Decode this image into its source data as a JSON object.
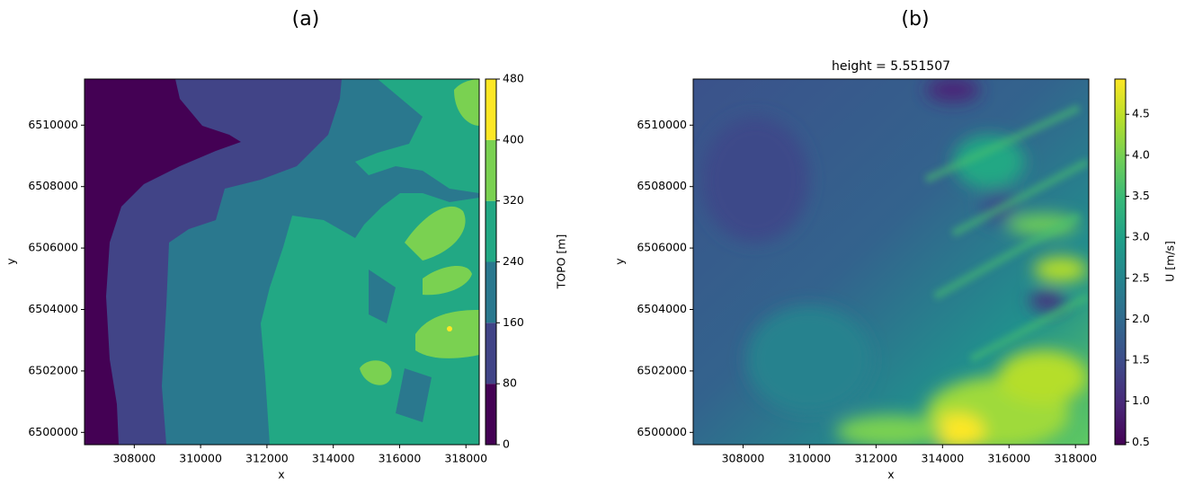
{
  "chart_data": [
    {
      "type": "contour",
      "panel_label": "(a)",
      "xlabel": "x",
      "ylabel": "y",
      "xlim": [
        306500,
        318400
      ],
      "ylim": [
        6499600,
        6511500
      ],
      "xticks": [
        308000,
        310000,
        312000,
        314000,
        316000,
        318000
      ],
      "yticks": [
        6500000,
        6502000,
        6504000,
        6506000,
        6508000,
        6510000
      ],
      "colorbar_label": "TOPO [m]",
      "levels": [
        0,
        80,
        160,
        240,
        320,
        400,
        480
      ],
      "colors": [
        "#440154",
        "#414487",
        "#2a788e",
        "#22a884",
        "#7ad151",
        "#fde725"
      ]
    },
    {
      "type": "heatmap",
      "panel_label": "(b)",
      "title": "height = 5.551507",
      "xlabel": "x",
      "ylabel": "y",
      "xlim": [
        306500,
        318400
      ],
      "ylim": [
        6499600,
        6511500
      ],
      "xticks": [
        308000,
        310000,
        312000,
        314000,
        316000,
        318000
      ],
      "yticks": [
        6500000,
        6502000,
        6504000,
        6506000,
        6508000,
        6510000
      ],
      "colorbar_label": "U [m/s]",
      "colormap": "viridis",
      "clim": [
        0.47,
        4.93
      ],
      "colorbar_ticks": [
        0.5,
        {
          "value": 1.0,
          "label": "1.0"
        },
        1.5,
        {
          "value": 2.0,
          "label": "2.0"
        },
        2.5,
        {
          "value": 3.0,
          "label": "3.0"
        },
        3.5,
        {
          "value": 4.0,
          "label": "4.0"
        },
        4.5
      ]
    }
  ]
}
